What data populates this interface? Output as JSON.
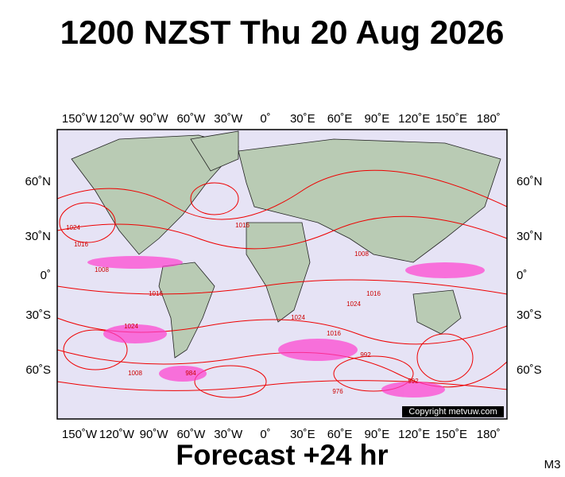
{
  "header": {
    "title": "1200 NZST Thu 20 Aug 2026"
  },
  "map": {
    "longitude_labels": [
      "150˚W",
      "120˚W",
      "90˚W",
      "60˚W",
      "30˚W",
      "0˚",
      "30˚E",
      "60˚E",
      "90˚E",
      "120˚E",
      "150˚E",
      "180˚"
    ],
    "latitude_labels": [
      "60˚N",
      "30˚N",
      "0˚",
      "30˚S",
      "60˚S"
    ],
    "isobar_labels": [
      "1024",
      "1016",
      "1008",
      "1016",
      "1024",
      "1016",
      "1008",
      "1016",
      "1024",
      "1016",
      "992",
      "984",
      "1008",
      "976",
      "1024",
      "992"
    ],
    "copyright": "Copyright metvuw.com"
  },
  "footer": {
    "forecast": "Forecast +24 hr",
    "model": "M3"
  }
}
